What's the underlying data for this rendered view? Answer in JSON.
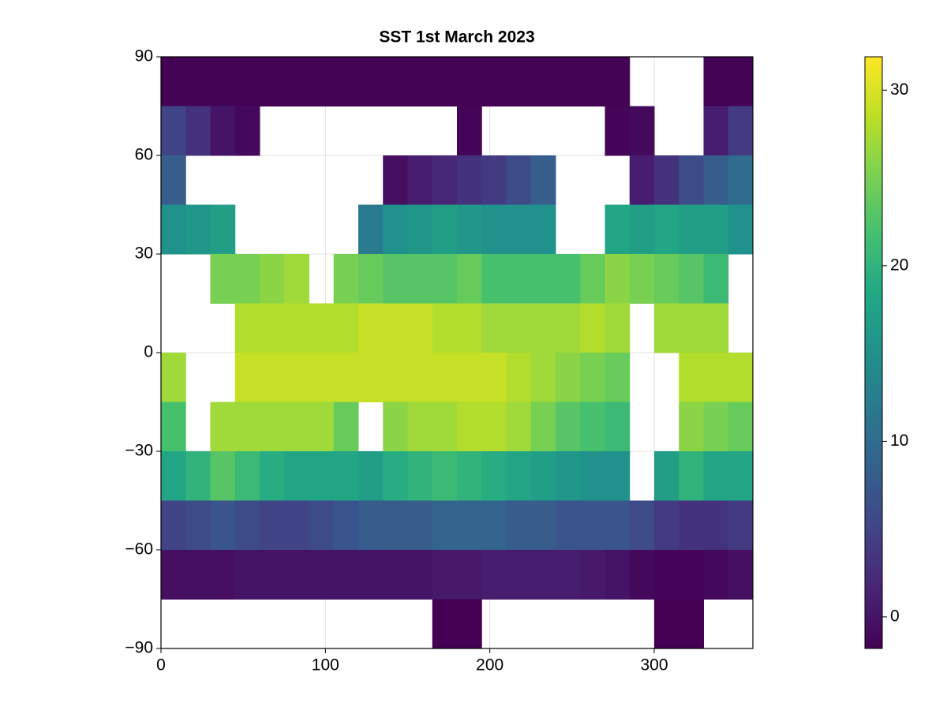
{
  "chart_data": {
    "type": "heatmap",
    "title": "SST 1st March 2023",
    "x": [
      7.5,
      22.5,
      37.5,
      52.5,
      67.5,
      82.5,
      97.5,
      112.5,
      127.5,
      142.5,
      157.5,
      172.5,
      187.5,
      202.5,
      217.5,
      232.5,
      247.5,
      262.5,
      277.5,
      292.5,
      307.5,
      322.5,
      337.5,
      352.5
    ],
    "y": [
      82.5,
      67.5,
      52.5,
      37.5,
      22.5,
      7.5,
      -7.5,
      -22.5,
      -37.5,
      -52.5,
      -67.5,
      -82.5
    ],
    "values": [
      [
        -1.7,
        -1.7,
        -1.7,
        -1.7,
        -1.7,
        -1.7,
        -1.7,
        -1.7,
        -1.7,
        -1.7,
        -1.7,
        -1.7,
        -1.7,
        -1.7,
        -1.7,
        -1.7,
        -1.7,
        -1.7,
        -1.7,
        null,
        null,
        null,
        -1.7,
        -1.7
      ],
      [
        5,
        3,
        0,
        -1,
        null,
        null,
        null,
        null,
        null,
        null,
        null,
        null,
        -1.5,
        null,
        null,
        null,
        null,
        null,
        -1.5,
        -1,
        null,
        null,
        1,
        4
      ],
      [
        8,
        null,
        null,
        null,
        null,
        null,
        null,
        null,
        null,
        -0.5,
        1,
        2,
        3,
        4,
        6,
        8,
        null,
        null,
        null,
        1,
        3,
        6,
        8,
        10
      ],
      [
        15,
        16,
        17,
        null,
        null,
        null,
        null,
        null,
        12,
        15,
        16,
        17,
        16,
        15,
        15,
        15,
        null,
        null,
        18,
        17,
        18,
        17,
        17,
        15
      ],
      [
        null,
        null,
        25,
        25,
        26,
        27,
        null,
        25,
        24,
        23,
        23,
        23,
        24,
        22,
        22,
        22,
        22,
        24,
        26,
        25,
        24,
        23,
        21,
        null
      ],
      [
        null,
        null,
        null,
        28,
        28,
        28,
        28,
        28,
        29,
        29,
        29,
        28,
        28,
        27,
        27,
        27,
        27,
        28,
        27,
        null,
        27,
        27,
        27,
        null
      ],
      [
        27,
        null,
        null,
        29,
        29,
        29,
        29,
        29,
        29,
        29,
        29,
        29,
        29,
        29,
        28,
        27,
        26,
        25,
        24,
        null,
        null,
        28,
        28,
        28
      ],
      [
        22,
        null,
        27,
        27,
        27,
        27,
        27,
        24,
        null,
        26,
        27,
        27,
        28,
        28,
        27,
        25,
        23,
        22,
        21,
        null,
        null,
        26,
        25,
        24
      ],
      [
        18,
        20,
        23,
        21,
        19,
        18,
        18,
        18,
        17,
        19,
        20,
        21,
        20,
        19,
        18,
        17,
        16,
        15,
        15,
        null,
        17,
        20,
        18,
        18
      ],
      [
        5,
        6,
        7,
        6,
        5,
        5,
        6,
        7,
        8,
        8,
        8,
        9,
        9,
        9,
        8,
        8,
        7,
        7,
        7,
        6,
        4,
        3,
        3,
        4
      ],
      [
        -0.5,
        -0.5,
        -0.5,
        0,
        0,
        0,
        0,
        0,
        0,
        0,
        0,
        0.5,
        0.5,
        1,
        1,
        1,
        1,
        0.5,
        0,
        -1,
        -1.5,
        -1.5,
        -1,
        -0.5
      ],
      [
        null,
        null,
        null,
        null,
        null,
        null,
        null,
        null,
        null,
        null,
        null,
        -1.8,
        -1.8,
        null,
        null,
        null,
        null,
        null,
        null,
        null,
        -1.8,
        -1.8,
        null,
        null
      ]
    ],
    "colormap": "viridis",
    "clim": [
      -1.8,
      31.9
    ],
    "colorbar_ticks": [
      0,
      10,
      20,
      30
    ],
    "xlim": [
      0,
      360
    ],
    "xticks": [
      0,
      100,
      200,
      300
    ],
    "ylim": [
      -90,
      90
    ],
    "yticks": [
      {
        "value": -90,
        "label": "−90"
      },
      {
        "value": -60,
        "label": "−60"
      },
      {
        "value": -30,
        "label": "−30"
      },
      0,
      30,
      60,
      90
    ],
    "grid": true
  }
}
